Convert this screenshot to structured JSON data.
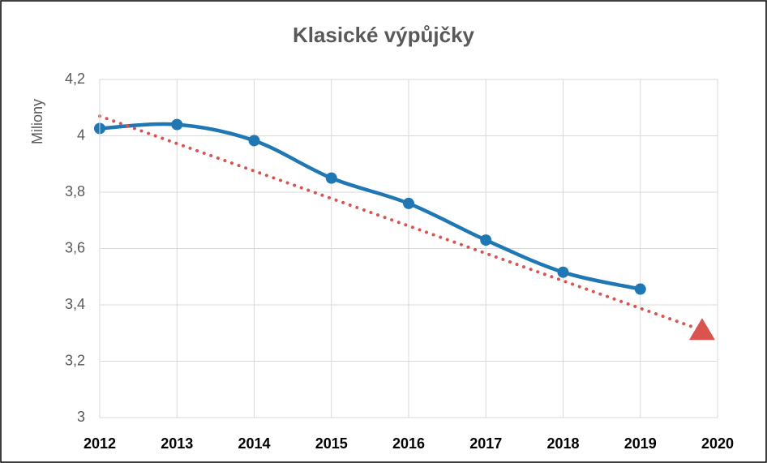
{
  "chart_data": {
    "type": "line",
    "title": "Klasické výpůjčky",
    "y_label": "Miliony",
    "x": [
      2012,
      2013,
      2014,
      2015,
      2016,
      2017,
      2018,
      2019
    ],
    "series": [
      {
        "color": "#1f77b4",
        "values": [
          4.026,
          4.04,
          3.983,
          3.85,
          3.76,
          3.63,
          3.516,
          3.456
        ],
        "smooth": true,
        "marker": "circle"
      },
      {
        "color": "#d9534f",
        "x": [
          2012,
          2019.8
        ],
        "values": [
          4.07,
          3.31
        ],
        "style": "dotted",
        "marker_end": "triangle"
      }
    ],
    "xlim": [
      2012,
      2020
    ],
    "xticks": [
      2012,
      2013,
      2014,
      2015,
      2016,
      2017,
      2018,
      2019,
      2020
    ],
    "ylim": [
      3,
      4.2
    ],
    "yticks": [
      3,
      {
        "value": 3.2,
        "label": "3,2"
      },
      {
        "value": 3.4,
        "label": "3,4"
      },
      {
        "value": 3.6,
        "label": "3,6"
      },
      {
        "value": 3.8,
        "label": "3,8"
      },
      4,
      {
        "value": 4.2,
        "label": "4,2"
      }
    ],
    "grid": true
  }
}
